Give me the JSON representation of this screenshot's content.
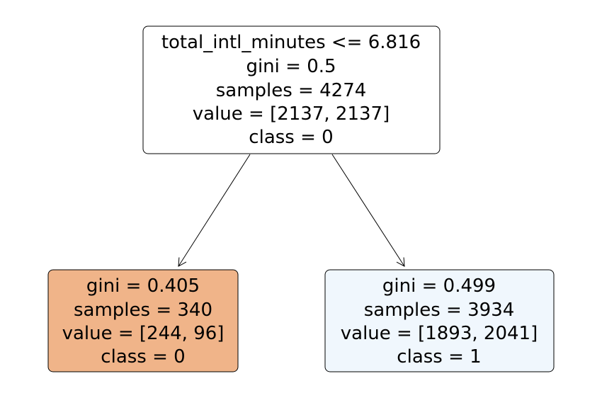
{
  "tree": {
    "root": {
      "split": "total_intl_minutes <= 6.816",
      "gini": "gini = 0.5",
      "samples": "samples = 4274",
      "value": "value = [2137, 2137]",
      "class": "class = 0",
      "fill": "#ffffff"
    },
    "left": {
      "gini": "gini = 0.405",
      "samples": "samples = 340",
      "value": "value = [244, 96]",
      "class": "class = 0",
      "fill": "#f0b489"
    },
    "right": {
      "gini": "gini = 0.499",
      "samples": "samples = 3934",
      "value": "value = [1893, 2041]",
      "class": "class = 1",
      "fill": "#f0f7fd"
    }
  }
}
